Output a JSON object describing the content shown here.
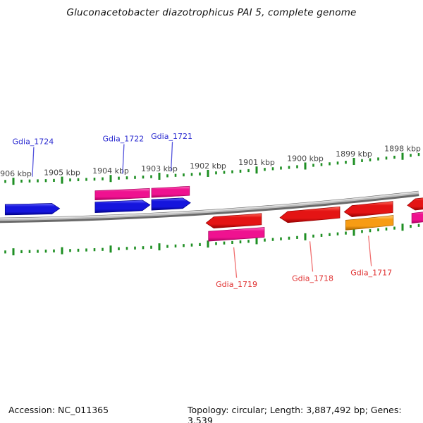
{
  "title": "Gluconacetobacter diazotrophicus PAI 5, complete genome",
  "status_bar": {
    "accession": "Accession: NC_011365",
    "info": "Topology: circular; Length: 3,887,492 bp; Genes: 3,539"
  },
  "ruler": {
    "unit_suffix": " kbp",
    "major_ticks_kbp": [
      1906,
      1905,
      1904,
      1903,
      1902,
      1901,
      1900,
      1899,
      1898
    ],
    "minor_divisions_per_major": 6
  },
  "palette": {
    "tick_green": "#1e8f23",
    "ruler_label_gray": "#444444",
    "backbone_dark": "#6a6a6a",
    "backbone_mid": "#bdbdbd",
    "backbone_light": "#e0e0e0",
    "gene_label_blue": "#2a2ad0",
    "gene_label_red": "#e03030",
    "callout_blue": "#5555dd",
    "callout_red": "#f07070",
    "feature_blue": {
      "light": "#6a6aff",
      "main": "#1515dd",
      "dark": "#000088"
    },
    "feature_magenta": {
      "light": "#ff70c0",
      "main": "#ef1290",
      "dark": "#a8005e"
    },
    "feature_red": {
      "light": "#ff6a5a",
      "main": "#e41414",
      "dark": "#960000"
    },
    "feature_orange": {
      "light": "#ffd080",
      "main": "#f79c14",
      "dark": "#a86400"
    }
  },
  "features": [
    {
      "label": "Gdia_1724",
      "color": "blue",
      "shape": "arrow",
      "direction": "right",
      "strand": "forward",
      "track": "upper1",
      "start_kbp": 1906.17,
      "end_kbp": 1905.05,
      "label_side": "top"
    },
    {
      "label": "",
      "color": "magenta",
      "shape": "rect",
      "direction": "none",
      "strand": "forward",
      "track": "upper2",
      "start_kbp": 1904.32,
      "end_kbp": 1903.2,
      "label_side": "none"
    },
    {
      "label": "Gdia_1722",
      "color": "blue",
      "shape": "arrow",
      "direction": "right",
      "strand": "forward",
      "track": "upper1",
      "start_kbp": 1904.32,
      "end_kbp": 1903.19,
      "label_side": "top"
    },
    {
      "label": "",
      "color": "magenta",
      "shape": "rect",
      "direction": "none",
      "strand": "forward",
      "track": "upper2",
      "start_kbp": 1903.16,
      "end_kbp": 1902.38,
      "label_side": "none"
    },
    {
      "label": "Gdia_1721",
      "color": "blue",
      "shape": "arrow",
      "direction": "right",
      "strand": "forward",
      "track": "upper1",
      "start_kbp": 1903.16,
      "end_kbp": 1902.36,
      "label_side": "top"
    },
    {
      "label": "Gdia_1719",
      "color": "red",
      "shape": "arrow",
      "direction": "left",
      "strand": "reverse",
      "track": "lower1",
      "start_kbp": 1902.04,
      "end_kbp": 1900.9,
      "label_side": "bottom"
    },
    {
      "label": "",
      "color": "magenta",
      "shape": "rect",
      "direction": "none",
      "strand": "reverse",
      "track": "lower2",
      "start_kbp": 1901.99,
      "end_kbp": 1900.84,
      "label_side": "none"
    },
    {
      "label": "Gdia_1718",
      "color": "red",
      "shape": "arrow",
      "direction": "left",
      "strand": "reverse",
      "track": "lower1",
      "start_kbp": 1900.52,
      "end_kbp": 1899.29,
      "label_side": "bottom"
    },
    {
      "label": "Gdia_1717",
      "color": "red",
      "shape": "arrow",
      "direction": "left",
      "strand": "reverse",
      "track": "lower1",
      "start_kbp": 1899.2,
      "end_kbp": 1898.2,
      "label_side": "bottom"
    },
    {
      "label": "",
      "color": "orange",
      "shape": "rect",
      "direction": "none",
      "strand": "reverse",
      "track": "lower2",
      "start_kbp": 1899.17,
      "end_kbp": 1898.19,
      "label_side": "none"
    },
    {
      "label": "",
      "color": "red",
      "shape": "arrow",
      "direction": "left",
      "strand": "reverse",
      "track": "lower1",
      "start_kbp": 1897.9,
      "end_kbp": 1897.38,
      "label_side": "none"
    },
    {
      "label": "",
      "color": "magenta",
      "shape": "rect",
      "direction": "none",
      "strand": "reverse",
      "track": "lower2",
      "start_kbp": 1897.81,
      "end_kbp": 1897.38,
      "label_side": "none"
    }
  ]
}
